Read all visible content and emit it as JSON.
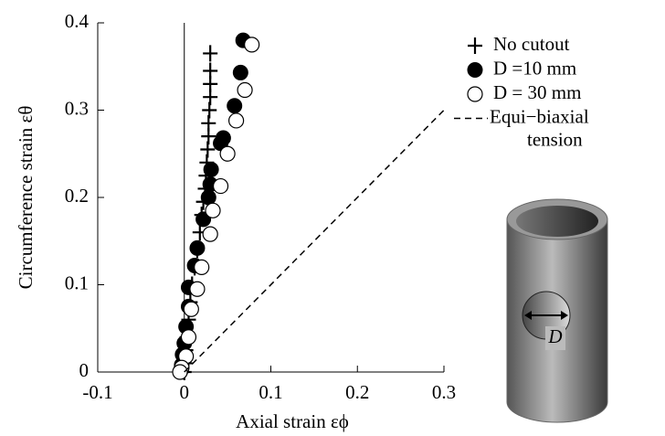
{
  "chart_data": {
    "type": "scatter",
    "xlabel": "Axial strain  εϕ",
    "ylabel": "Circumference strain  εθ",
    "xlim": [
      -0.1,
      0.3
    ],
    "ylim": [
      0,
      0.4
    ],
    "xticks": [
      -0.1,
      0,
      0.1,
      0.2,
      0.3
    ],
    "yticks": [
      0,
      0.1,
      0.2,
      0.3,
      0.4
    ],
    "zero_line": true,
    "series": [
      {
        "name": "No cutout",
        "color": "#000000",
        "marker": "plus",
        "x": [
          0.03,
          0.03,
          0.03,
          0.03,
          0.029,
          0.028,
          0.028,
          0.027,
          0.026,
          0.025,
          0.024,
          0.022,
          0.02,
          0.018,
          0.015,
          0.012,
          0.009,
          0.007,
          0.005,
          0.003,
          0.002,
          0.001,
          0
        ],
        "values": [
          0.365,
          0.345,
          0.33,
          0.315,
          0.3,
          0.285,
          0.27,
          0.255,
          0.24,
          0.225,
          0.21,
          0.195,
          0.18,
          0.16,
          0.14,
          0.12,
          0.1,
          0.08,
          0.06,
          0.04,
          0.025,
          0.01,
          0
        ]
      },
      {
        "name": "D =10 mm",
        "color": "#000000",
        "marker": "filled-circle",
        "x": [
          0.068,
          0.065,
          0.058,
          0.045,
          0.042,
          0.031,
          0.03,
          0.028,
          0.022,
          0.015,
          0.012,
          0.005,
          0.005,
          0.002,
          0,
          -0.002,
          -0.003,
          -0.004
        ],
        "values": [
          0.38,
          0.343,
          0.305,
          0.268,
          0.262,
          0.232,
          0.215,
          0.2,
          0.175,
          0.142,
          0.122,
          0.097,
          0.075,
          0.052,
          0.033,
          0.02,
          0.008,
          0.002
        ]
      },
      {
        "name": "D = 30 mm",
        "color": "#000000",
        "marker": "open-circle",
        "x": [
          0.078,
          0.07,
          0.06,
          0.05,
          0.042,
          0.033,
          0.03,
          0.02,
          0.015,
          0.008,
          0.005,
          0.002,
          -0.003,
          -0.005
        ],
        "values": [
          0.375,
          0.323,
          0.288,
          0.25,
          0.213,
          0.185,
          0.158,
          0.12,
          0.095,
          0.072,
          0.04,
          0.018,
          0.005,
          0
        ]
      },
      {
        "name": "Equi−biaxial tension",
        "color": "#000000",
        "marker": "dashed-line",
        "x": [
          0,
          0.3
        ],
        "values": [
          0,
          0.3
        ]
      }
    ]
  },
  "illustration": {
    "label": "D"
  }
}
